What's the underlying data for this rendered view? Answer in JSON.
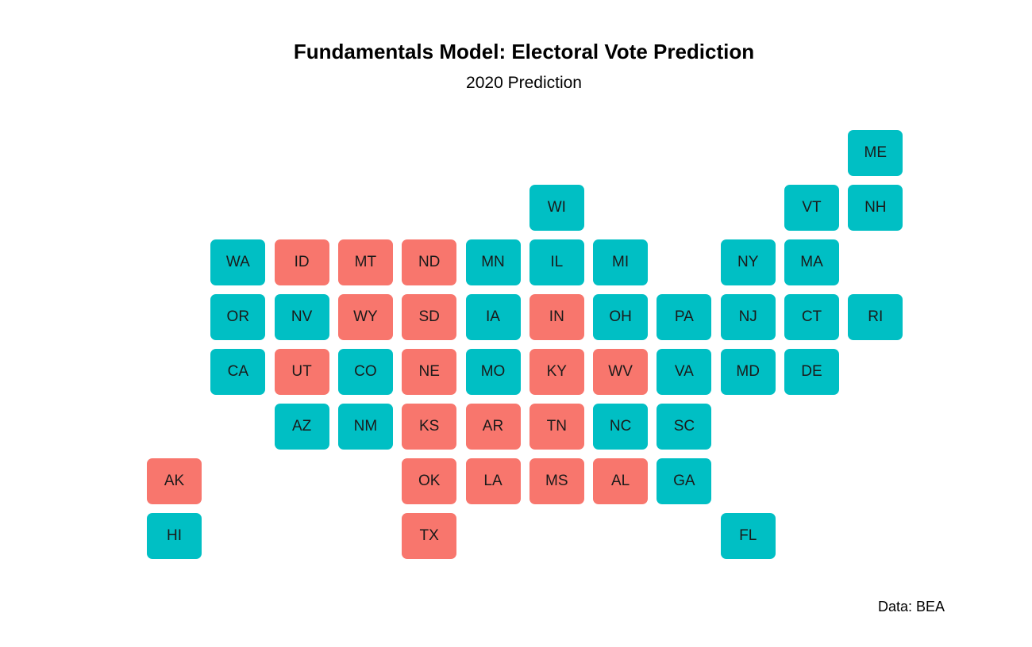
{
  "title": "Fundamentals Model: Electoral Vote Prediction",
  "subtitle": "2020 Prediction",
  "caption": "Data: BEA",
  "colors": {
    "blue": "#00BFC4",
    "red": "#F8766D"
  },
  "states": [
    {
      "abbr": "ME",
      "col": 11,
      "row": 0,
      "winner": "blue"
    },
    {
      "abbr": "WI",
      "col": 6,
      "row": 1,
      "winner": "blue"
    },
    {
      "abbr": "VT",
      "col": 10,
      "row": 1,
      "winner": "blue"
    },
    {
      "abbr": "NH",
      "col": 11,
      "row": 1,
      "winner": "blue"
    },
    {
      "abbr": "WA",
      "col": 1,
      "row": 2,
      "winner": "blue"
    },
    {
      "abbr": "ID",
      "col": 2,
      "row": 2,
      "winner": "red"
    },
    {
      "abbr": "MT",
      "col": 3,
      "row": 2,
      "winner": "red"
    },
    {
      "abbr": "ND",
      "col": 4,
      "row": 2,
      "winner": "red"
    },
    {
      "abbr": "MN",
      "col": 5,
      "row": 2,
      "winner": "blue"
    },
    {
      "abbr": "IL",
      "col": 6,
      "row": 2,
      "winner": "blue"
    },
    {
      "abbr": "MI",
      "col": 7,
      "row": 2,
      "winner": "blue"
    },
    {
      "abbr": "NY",
      "col": 9,
      "row": 2,
      "winner": "blue"
    },
    {
      "abbr": "MA",
      "col": 10,
      "row": 2,
      "winner": "blue"
    },
    {
      "abbr": "OR",
      "col": 1,
      "row": 3,
      "winner": "blue"
    },
    {
      "abbr": "NV",
      "col": 2,
      "row": 3,
      "winner": "blue"
    },
    {
      "abbr": "WY",
      "col": 3,
      "row": 3,
      "winner": "red"
    },
    {
      "abbr": "SD",
      "col": 4,
      "row": 3,
      "winner": "red"
    },
    {
      "abbr": "IA",
      "col": 5,
      "row": 3,
      "winner": "blue"
    },
    {
      "abbr": "IN",
      "col": 6,
      "row": 3,
      "winner": "red"
    },
    {
      "abbr": "OH",
      "col": 7,
      "row": 3,
      "winner": "blue"
    },
    {
      "abbr": "PA",
      "col": 8,
      "row": 3,
      "winner": "blue"
    },
    {
      "abbr": "NJ",
      "col": 9,
      "row": 3,
      "winner": "blue"
    },
    {
      "abbr": "CT",
      "col": 10,
      "row": 3,
      "winner": "blue"
    },
    {
      "abbr": "RI",
      "col": 11,
      "row": 3,
      "winner": "blue"
    },
    {
      "abbr": "CA",
      "col": 1,
      "row": 4,
      "winner": "blue"
    },
    {
      "abbr": "UT",
      "col": 2,
      "row": 4,
      "winner": "red"
    },
    {
      "abbr": "CO",
      "col": 3,
      "row": 4,
      "winner": "blue"
    },
    {
      "abbr": "NE",
      "col": 4,
      "row": 4,
      "winner": "red"
    },
    {
      "abbr": "MO",
      "col": 5,
      "row": 4,
      "winner": "blue"
    },
    {
      "abbr": "KY",
      "col": 6,
      "row": 4,
      "winner": "red"
    },
    {
      "abbr": "WV",
      "col": 7,
      "row": 4,
      "winner": "red"
    },
    {
      "abbr": "VA",
      "col": 8,
      "row": 4,
      "winner": "blue"
    },
    {
      "abbr": "MD",
      "col": 9,
      "row": 4,
      "winner": "blue"
    },
    {
      "abbr": "DE",
      "col": 10,
      "row": 4,
      "winner": "blue"
    },
    {
      "abbr": "AZ",
      "col": 2,
      "row": 5,
      "winner": "blue"
    },
    {
      "abbr": "NM",
      "col": 3,
      "row": 5,
      "winner": "blue"
    },
    {
      "abbr": "KS",
      "col": 4,
      "row": 5,
      "winner": "red"
    },
    {
      "abbr": "AR",
      "col": 5,
      "row": 5,
      "winner": "red"
    },
    {
      "abbr": "TN",
      "col": 6,
      "row": 5,
      "winner": "red"
    },
    {
      "abbr": "NC",
      "col": 7,
      "row": 5,
      "winner": "blue"
    },
    {
      "abbr": "SC",
      "col": 8,
      "row": 5,
      "winner": "blue"
    },
    {
      "abbr": "AK",
      "col": 0,
      "row": 6,
      "winner": "red"
    },
    {
      "abbr": "OK",
      "col": 4,
      "row": 6,
      "winner": "red"
    },
    {
      "abbr": "LA",
      "col": 5,
      "row": 6,
      "winner": "red"
    },
    {
      "abbr": "MS",
      "col": 6,
      "row": 6,
      "winner": "red"
    },
    {
      "abbr": "AL",
      "col": 7,
      "row": 6,
      "winner": "red"
    },
    {
      "abbr": "GA",
      "col": 8,
      "row": 6,
      "winner": "blue"
    },
    {
      "abbr": "HI",
      "col": 0,
      "row": 7,
      "winner": "blue"
    },
    {
      "abbr": "TX",
      "col": 4,
      "row": 7,
      "winner": "red"
    },
    {
      "abbr": "FL",
      "col": 9,
      "row": 7,
      "winner": "blue"
    }
  ]
}
